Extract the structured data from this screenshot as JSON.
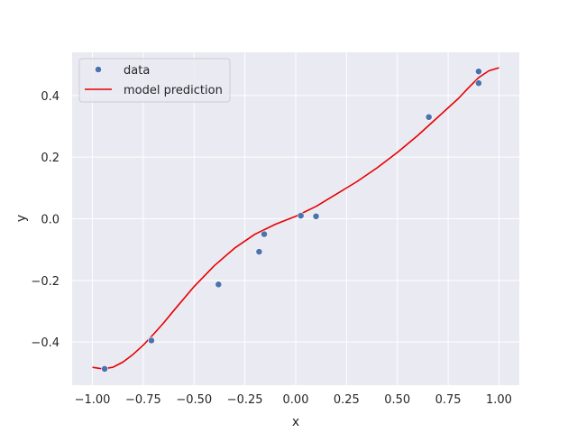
{
  "chart_data": {
    "type": "scatter",
    "title": "",
    "xlabel": "x",
    "ylabel": "y",
    "xlim": [
      -1.1,
      1.1
    ],
    "ylim": [
      -0.54,
      0.54
    ],
    "xticks": [
      -1.0,
      -0.75,
      -0.5,
      -0.25,
      0.0,
      0.25,
      0.5,
      0.75,
      1.0
    ],
    "xtick_labels": [
      "−1.00",
      "−0.75",
      "−0.50",
      "−0.25",
      "0.00",
      "0.25",
      "0.50",
      "0.75",
      "1.00"
    ],
    "yticks": [
      -0.4,
      -0.2,
      0.0,
      0.2,
      0.4
    ],
    "ytick_labels": [
      "−0.4",
      "−0.2",
      "0.0",
      "0.2",
      "0.4"
    ],
    "grid": true,
    "legend_position": "top-left",
    "series": [
      {
        "name": "data",
        "kind": "scatter",
        "color": "#4c72b0",
        "x": [
          -0.94,
          -0.71,
          -0.38,
          -0.18,
          -0.155,
          0.025,
          0.1,
          0.655,
          0.9,
          0.9
        ],
        "y": [
          -0.487,
          -0.395,
          -0.213,
          -0.107,
          -0.05,
          0.01,
          0.008,
          0.33,
          0.44,
          0.478
        ]
      },
      {
        "name": "model prediction",
        "kind": "line",
        "color": "#e60000",
        "x": [
          -1.0,
          -0.95,
          -0.9,
          -0.85,
          -0.8,
          -0.75,
          -0.7,
          -0.65,
          -0.6,
          -0.5,
          -0.4,
          -0.3,
          -0.2,
          -0.1,
          0.0,
          0.1,
          0.2,
          0.3,
          0.4,
          0.5,
          0.6,
          0.7,
          0.8,
          0.85,
          0.9,
          0.95,
          1.0
        ],
        "y": [
          -0.482,
          -0.487,
          -0.482,
          -0.465,
          -0.44,
          -0.41,
          -0.375,
          -0.338,
          -0.298,
          -0.22,
          -0.152,
          -0.095,
          -0.05,
          -0.018,
          0.008,
          0.04,
          0.08,
          0.12,
          0.165,
          0.215,
          0.27,
          0.33,
          0.39,
          0.425,
          0.458,
          0.48,
          0.49
        ]
      }
    ]
  }
}
